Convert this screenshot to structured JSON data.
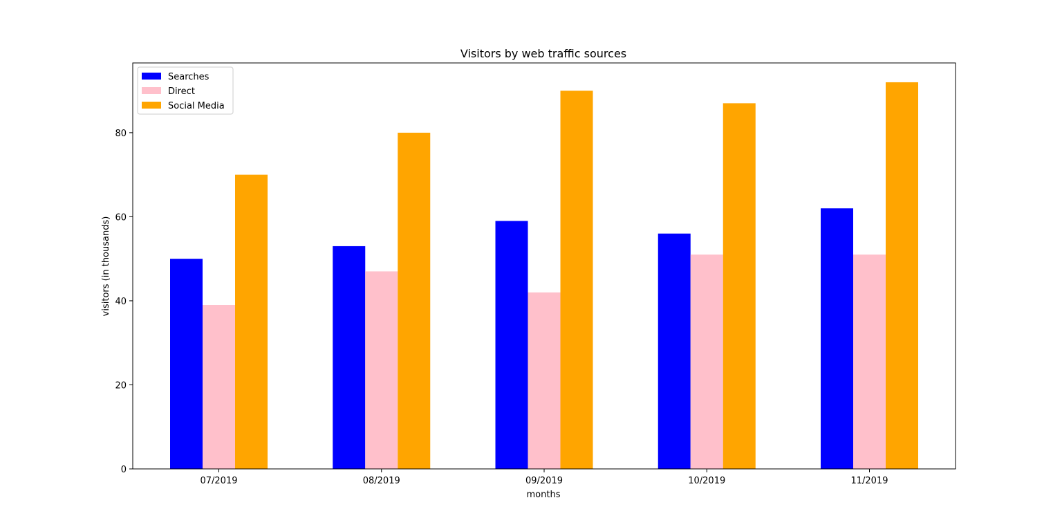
{
  "chart_data": {
    "type": "bar",
    "title": "Visitors by web traffic sources",
    "xlabel": "months",
    "ylabel": "visitors (in thousands)",
    "categories": [
      "07/2019",
      "08/2019",
      "09/2019",
      "10/2019",
      "11/2019"
    ],
    "series": [
      {
        "name": "Searches",
        "color": "#0000ff",
        "values": [
          50,
          53,
          59,
          56,
          62
        ]
      },
      {
        "name": "Direct",
        "color": "#ffc0cb",
        "values": [
          39,
          47,
          42,
          51,
          51
        ]
      },
      {
        "name": "Social Media",
        "color": "#ffa500",
        "values": [
          70,
          80,
          90,
          87,
          92
        ]
      }
    ],
    "ylim": [
      0,
      96.6
    ],
    "yticks": [
      0,
      20,
      40,
      60,
      80
    ],
    "grid": false,
    "legend_position": "upper-left"
  }
}
